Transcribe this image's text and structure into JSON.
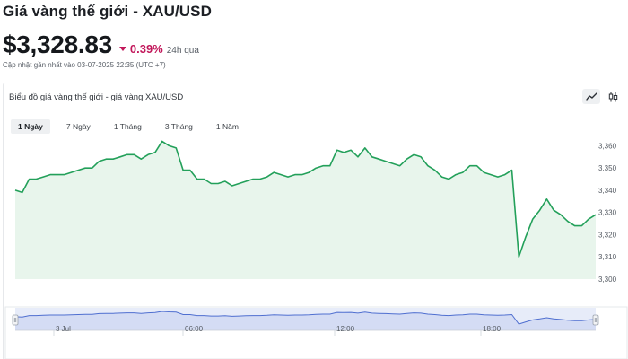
{
  "header": {
    "title": "Giá vàng thế giới - XAU/USD",
    "price": "$3,328.83",
    "change": "0.39%",
    "change_period": "24h qua",
    "updated": "Cập nhật gần nhất vào 03-07-2025 22:35 (UTC +7)"
  },
  "chart_card": {
    "title": "Biểu đồ giá vàng thế giới - giá vàng XAU/USD",
    "chart_types": [
      {
        "icon": "line-chart-icon",
        "active": true
      },
      {
        "icon": "candlestick-chart-icon",
        "active": false
      }
    ],
    "range_tabs": [
      {
        "label": "1 Ngày",
        "active": true
      },
      {
        "label": "7 Ngày",
        "active": false
      },
      {
        "label": "1 Tháng",
        "active": false
      },
      {
        "label": "3 Tháng",
        "active": false
      },
      {
        "label": "1 Năm",
        "active": false
      }
    ]
  },
  "colors": {
    "line": "#23a05a",
    "fill": "#e8f5ec",
    "down": "#c2185b",
    "navigator_fill": "#d4dcf4",
    "navigator_line": "#4f6fd0"
  },
  "chart_data": {
    "type": "area",
    "ylim": [
      3300,
      3365
    ],
    "y_ticks": [
      "3,300",
      "3,310",
      "3,320",
      "3,330",
      "3,340",
      "3,350",
      "3,360"
    ],
    "y": [
      3340,
      3339,
      3345,
      3345,
      3346,
      3347,
      3347,
      3347,
      3348,
      3349,
      3350,
      3350,
      3353,
      3354,
      3354,
      3355,
      3356,
      3356,
      3354,
      3356,
      3357,
      3362,
      3360,
      3359,
      3349,
      3349,
      3345,
      3345,
      3343,
      3343,
      3344,
      3342,
      3343,
      3344,
      3345,
      3345,
      3346,
      3348,
      3347,
      3346,
      3347,
      3347,
      3348,
      3350,
      3351,
      3351,
      3358,
      3357,
      3358,
      3355,
      3359,
      3355,
      3354,
      3353,
      3352,
      3351,
      3354,
      3356,
      3355,
      3351,
      3349,
      3346,
      3345,
      3347,
      3348,
      3351,
      3351,
      3348,
      3347,
      3346,
      3347,
      3349,
      3310,
      3319,
      3327,
      3331,
      3336,
      3331,
      3329,
      3326,
      3324,
      3324,
      3327,
      3329
    ],
    "navigator_labels": [
      "3 Jul",
      "06:00",
      "12:00",
      "18:00"
    ]
  }
}
